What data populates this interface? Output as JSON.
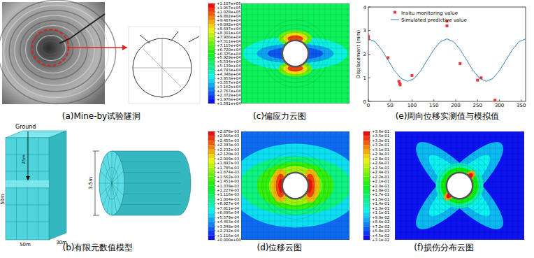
{
  "panels": {
    "a": {
      "caption": "(a)Mine-by试验隧洞"
    },
    "b": {
      "caption": "(b)有限元数值模型",
      "ground": "Ground",
      "depth_label": "25m",
      "height_label": "50m",
      "width_label": "50m",
      "length_label": "30m",
      "diameter_label": "3.5m"
    },
    "c": {
      "caption": "(c)偏应力云图",
      "colorbar": {
        "range": [
          15810,
          110700
        ],
        "ticks": [
          {
            "value": 110700,
            "label": "+1.107e+05"
          },
          {
            "value": 106700,
            "label": "+1.067e+05"
          },
          {
            "value": 102800,
            "label": "+1.028e+05"
          },
          {
            "value": 98820,
            "label": "+9.882e+04"
          },
          {
            "value": 94870,
            "label": "+9.487e+04"
          },
          {
            "value": 90920,
            "label": "+9.092e+04"
          },
          {
            "value": 86970,
            "label": "+8.697e+04"
          },
          {
            "value": 83010,
            "label": "+8.301e+04"
          },
          {
            "value": 79060,
            "label": "+7.906e+04"
          },
          {
            "value": 75110,
            "label": "+7.511e+04"
          },
          {
            "value": 71150,
            "label": "+7.115e+04"
          },
          {
            "value": 67200,
            "label": "+6.720e+04"
          },
          {
            "value": 63250,
            "label": "+6.325e+04"
          },
          {
            "value": 59290,
            "label": "+5.929e+04"
          },
          {
            "value": 55340,
            "label": "+5.534e+04"
          },
          {
            "value": 51390,
            "label": "+5.139e+04"
          },
          {
            "value": 47430,
            "label": "+4.743e+04"
          },
          {
            "value": 43480,
            "label": "+4.348e+04"
          },
          {
            "value": 39530,
            "label": "+3.953e+04"
          },
          {
            "value": 35570,
            "label": "+3.557e+04"
          },
          {
            "value": 31620,
            "label": "+3.162e+04"
          },
          {
            "value": 27670,
            "label": "+2.767e+04"
          },
          {
            "value": 23720,
            "label": "+2.372e+04"
          },
          {
            "value": 19760,
            "label": "+1.976e+04"
          },
          {
            "value": 15810,
            "label": "+1.581e+04"
          }
        ]
      }
    },
    "d": {
      "caption": "(d)位移云图",
      "colorbar": {
        "range": [
          0,
          0.002678
        ],
        "ticks": [
          {
            "value": 0.002678,
            "label": "+2.678e-03"
          },
          {
            "value": 0.002566,
            "label": "+2.566e-03"
          },
          {
            "value": 0.002455,
            "label": "+2.455e-03"
          },
          {
            "value": 0.002343,
            "label": "+2.343e-03"
          },
          {
            "value": 0.002232,
            "label": "+2.232e-03"
          },
          {
            "value": 0.00212,
            "label": "+2.120e-03"
          },
          {
            "value": 0.002009,
            "label": "+2.009e-03"
          },
          {
            "value": 0.001897,
            "label": "+1.897e-03"
          },
          {
            "value": 0.001785,
            "label": "+1.785e-03"
          },
          {
            "value": 0.001674,
            "label": "+1.674e-03"
          },
          {
            "value": 0.001562,
            "label": "+1.562e-03"
          },
          {
            "value": 0.001451,
            "label": "+1.451e-03"
          },
          {
            "value": 0.001339,
            "label": "+1.339e-03"
          },
          {
            "value": 0.001227,
            "label": "+1.227e-03"
          },
          {
            "value": 0.001116,
            "label": "+1.116e-03"
          },
          {
            "value": 0.001004,
            "label": "+1.004e-03"
          },
          {
            "value": 0.0008927,
            "label": "+8.927e-04"
          },
          {
            "value": 0.0007811,
            "label": "+7.811e-04"
          },
          {
            "value": 0.0006695,
            "label": "+6.695e-04"
          },
          {
            "value": 0.0005579,
            "label": "+5.579e-04"
          },
          {
            "value": 0.0004463,
            "label": "+4.463e-04"
          },
          {
            "value": 0.0003348,
            "label": "+3.348e-04"
          },
          {
            "value": 0.0002232,
            "label": "+2.232e-04"
          },
          {
            "value": 0.0001116,
            "label": "+1.116e-04"
          },
          {
            "value": 0,
            "label": "+0.000e+00"
          }
        ]
      }
    },
    "e": {
      "caption": "(e)周向位移实测值与模拟值"
    },
    "f": {
      "caption": "(f)损伤分布云图",
      "colorbar": {
        "range": [
          0.031,
          0.36
        ],
        "ticks": [
          {
            "value": 0.36,
            "label": "+3.6e-01"
          },
          {
            "value": 0.3463,
            "label": "+3.5e-01"
          },
          {
            "value": 0.3326,
            "label": "+3.3e-01"
          },
          {
            "value": 0.3189,
            "label": "+3.2e-01"
          },
          {
            "value": 0.3052,
            "label": "+3.1e-01"
          },
          {
            "value": 0.2915,
            "label": "+2.9e-01"
          },
          {
            "value": 0.2778,
            "label": "+2.8e-01"
          },
          {
            "value": 0.264,
            "label": "+2.6e-01"
          },
          {
            "value": 0.2503,
            "label": "+2.5e-01"
          },
          {
            "value": 0.2366,
            "label": "+2.4e-01"
          },
          {
            "value": 0.2229,
            "label": "+2.2e-01"
          },
          {
            "value": 0.2092,
            "label": "+2.1e-01"
          },
          {
            "value": 0.1955,
            "label": "+2.0e-01"
          },
          {
            "value": 0.1818,
            "label": "+1.8e-01"
          },
          {
            "value": 0.1681,
            "label": "+1.7e-01"
          },
          {
            "value": 0.1544,
            "label": "+1.5e-01"
          },
          {
            "value": 0.1407,
            "label": "+1.4e-01"
          },
          {
            "value": 0.127,
            "label": "+1.3e-01"
          },
          {
            "value": 0.1133,
            "label": "+1.1e-01"
          },
          {
            "value": 0.0995,
            "label": "+9.9e-02"
          },
          {
            "value": 0.0858,
            "label": "+8.6e-02"
          },
          {
            "value": 0.0721,
            "label": "+7.2e-02"
          },
          {
            "value": 0.0584,
            "label": "+5.8e-02"
          },
          {
            "value": 0.0447,
            "label": "+4.5e-02"
          },
          {
            "value": 0.031,
            "label": "+3.1e-02"
          }
        ]
      }
    }
  },
  "chart_data": {
    "type": "line",
    "y_label": "Displacement (mm)",
    "xlim": [
      0,
      360
    ],
    "xticks": [
      0,
      50,
      100,
      150,
      200,
      250,
      300,
      350
    ],
    "ylim": [
      0,
      4
    ],
    "yticks": [
      0,
      1,
      2,
      3,
      4
    ],
    "grid": false,
    "legend": "top",
    "series": [
      {
        "name": "Insitu monitoring value",
        "type": "scatter",
        "marker": "square",
        "color": "#e8383d",
        "x": [
          0,
          0,
          45,
          70,
          72,
          73,
          100,
          180,
          180,
          210,
          250,
          258,
          290
        ],
        "values": [
          2.75,
          2.65,
          1.85,
          0.85,
          0.75,
          0.7,
          1.1,
          3.4,
          3.2,
          1.6,
          0.9,
          1.0,
          0.05
        ]
      },
      {
        "name": "Simulated predictive value",
        "type": "line",
        "line_style": "solid",
        "color": "#2e86c1",
        "x": [
          0,
          15,
          30,
          45,
          60,
          75,
          90,
          105,
          120,
          135,
          150,
          165,
          180,
          195,
          210,
          225,
          240,
          255,
          270,
          285,
          300,
          315,
          330,
          345,
          360
        ],
        "values": [
          2.65,
          2.53,
          2.2,
          1.75,
          1.3,
          0.97,
          0.85,
          0.97,
          1.3,
          1.75,
          2.2,
          2.53,
          2.65,
          2.53,
          2.2,
          1.75,
          1.3,
          0.97,
          0.85,
          0.97,
          1.3,
          1.75,
          2.2,
          2.53,
          2.65
        ]
      }
    ]
  }
}
